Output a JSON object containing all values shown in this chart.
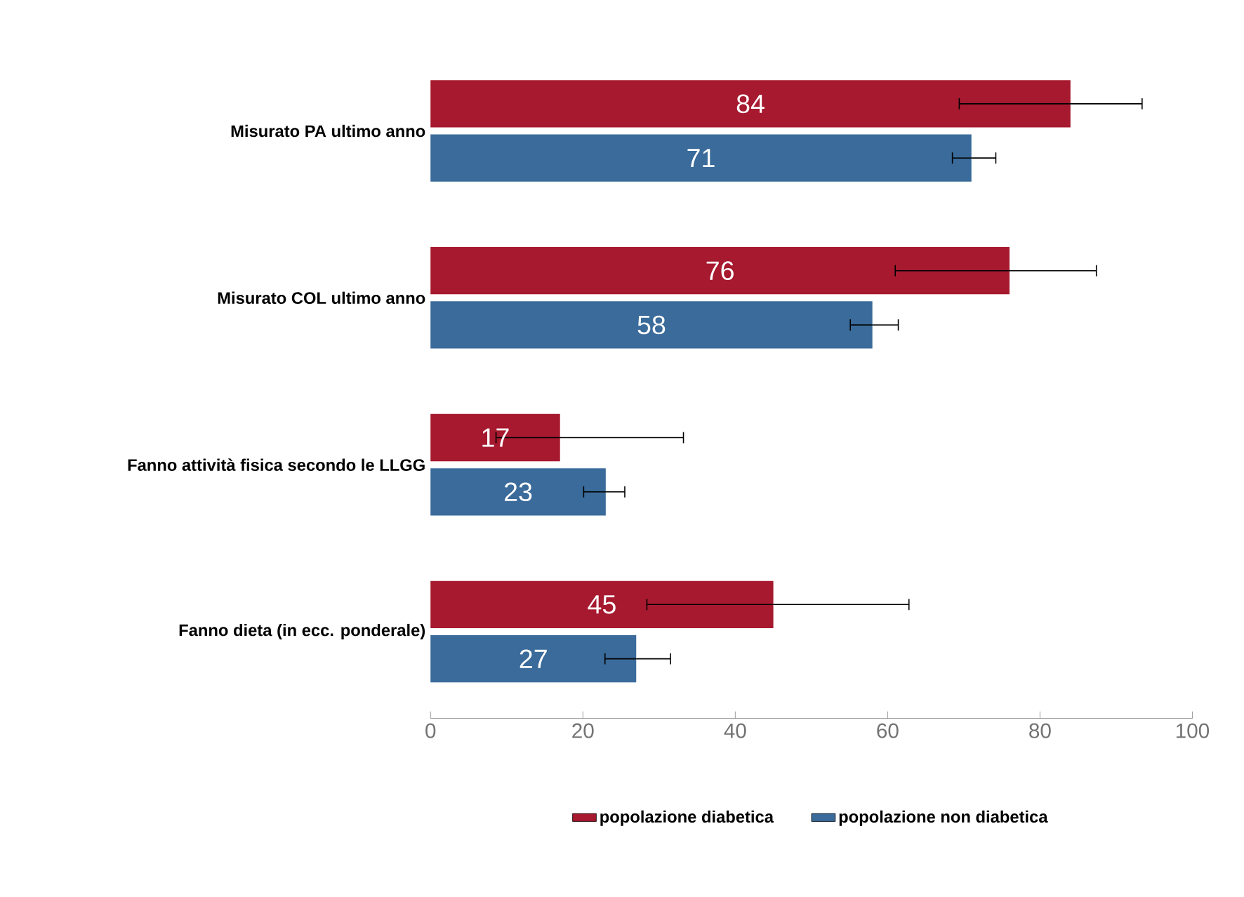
{
  "chart_data": {
    "type": "bar",
    "orientation": "horizontal",
    "categories": [
      "Misurato PA ultimo anno",
      "Misurato COL ultimo anno",
      "Fanno attività fisica secondo le LLGG",
      "Fanno dieta (in ecc. ponderale)"
    ],
    "series": [
      {
        "name": "popolazione diabetica",
        "color": "#a6192e",
        "values": [
          84,
          76,
          17,
          45
        ],
        "errors": [
          [
            69.4,
            93.4
          ],
          [
            61,
            87.4
          ],
          [
            8.6,
            33.2
          ],
          [
            28.4,
            62.8
          ]
        ]
      },
      {
        "name": "popolazione non diabetica",
        "color": "#3a6b9a",
        "values": [
          71,
          58,
          23,
          27
        ],
        "errors": [
          [
            68.5,
            74.2
          ],
          [
            55.1,
            61.4
          ],
          [
            20.1,
            25.5
          ],
          [
            22.9,
            31.5
          ]
        ]
      }
    ],
    "xlim": [
      0,
      100
    ],
    "xticks": [
      0,
      20,
      40,
      60,
      80,
      100
    ],
    "data_labels": true,
    "grid": false,
    "legend": "bottom"
  }
}
